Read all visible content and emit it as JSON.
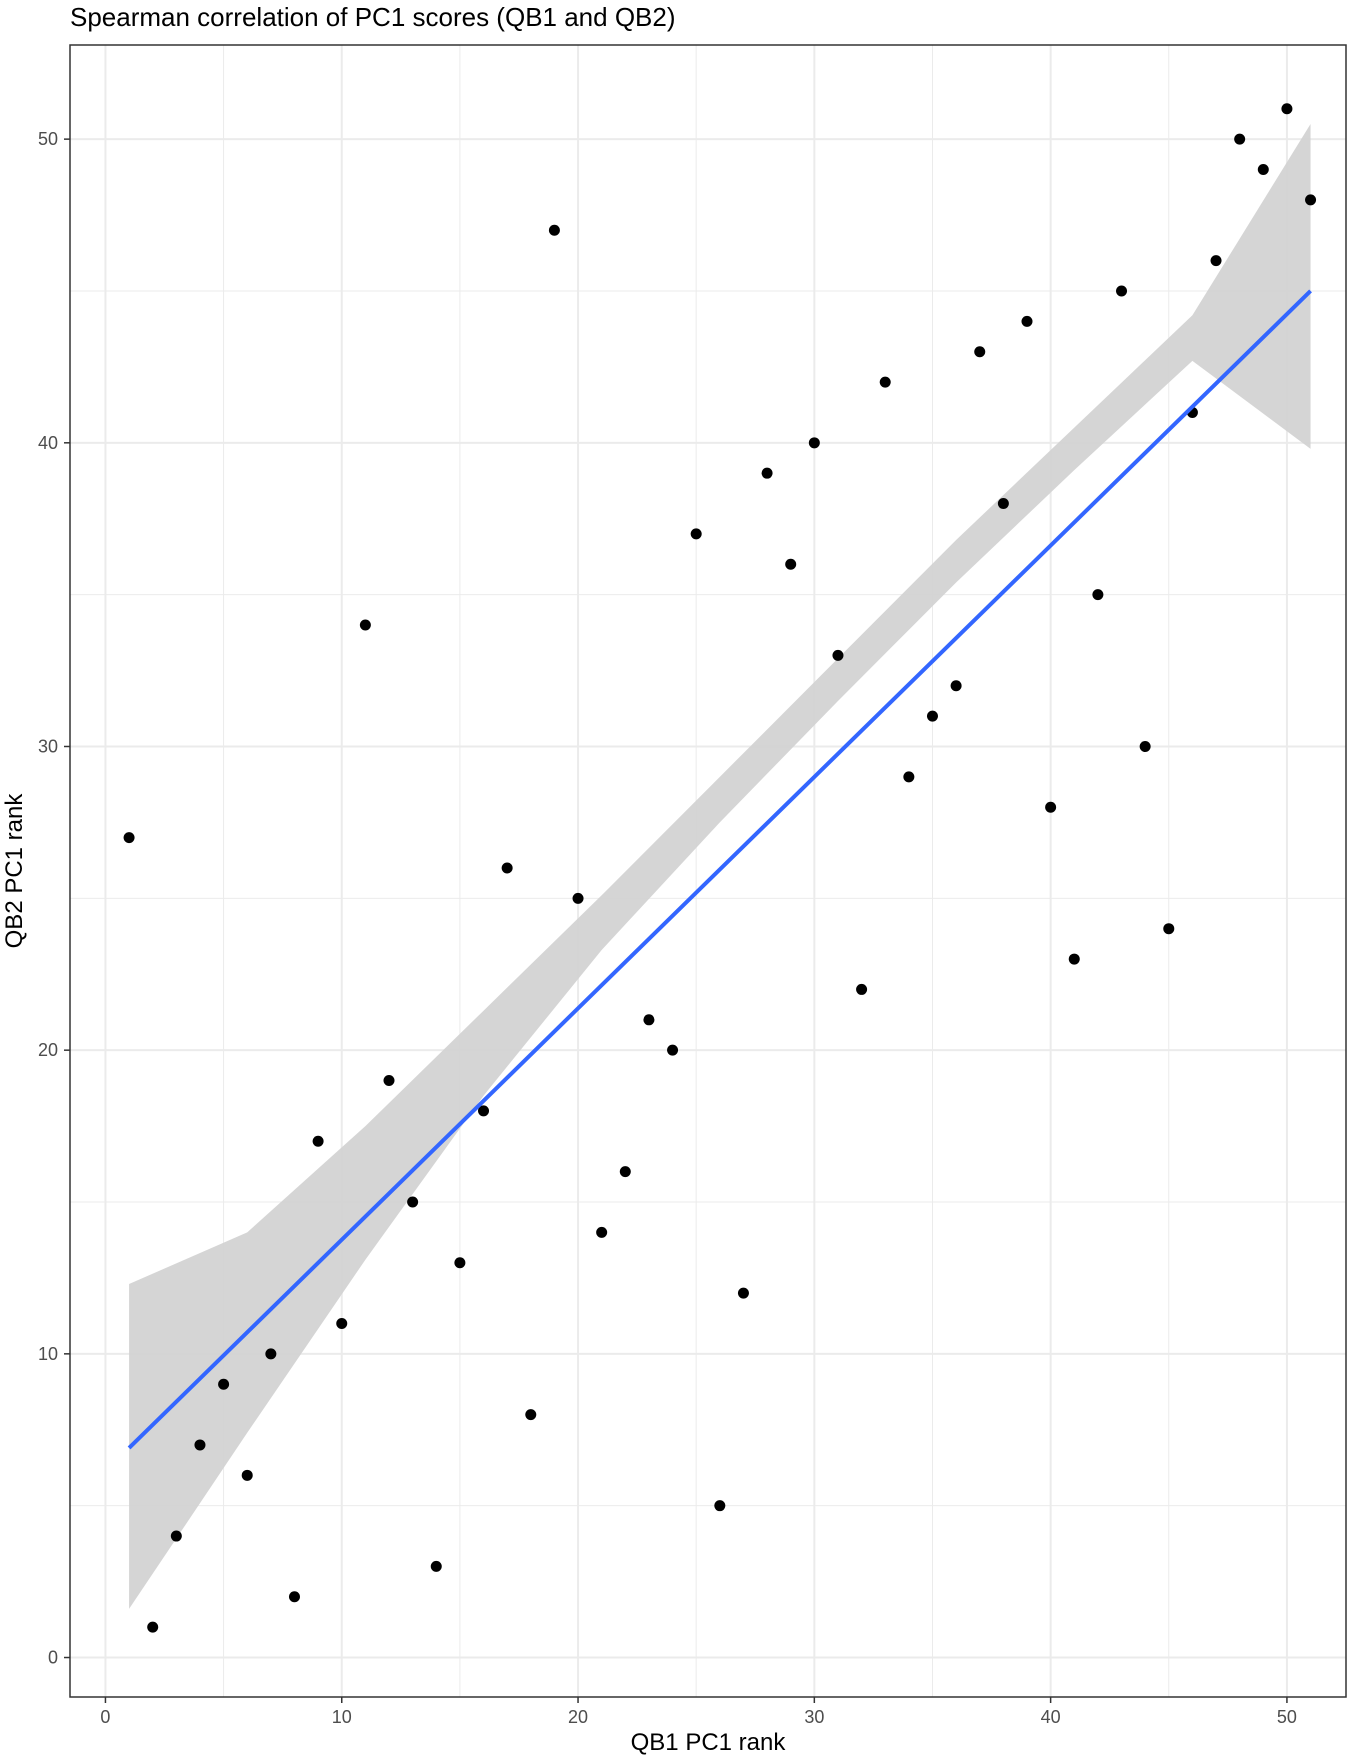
{
  "chart_data": {
    "type": "scatter",
    "title": "Spearman correlation of PC1 scores (QB1 and QB2)",
    "xlabel": "QB1 PC1 rank",
    "ylabel": "QB2 PC1 rank",
    "xlim": [
      -1.5,
      52.5
    ],
    "ylim": [
      -1.3,
      53.1
    ],
    "x_ticks": [
      0,
      10,
      20,
      30,
      40,
      50
    ],
    "y_ticks": [
      0,
      10,
      20,
      30,
      40,
      50
    ],
    "x_minor_ticks": [
      5,
      15,
      25,
      35,
      45
    ],
    "y_minor_ticks": [
      5,
      15,
      25,
      35,
      45
    ],
    "grid": true,
    "points": {
      "x": [
        1,
        2,
        3,
        4,
        5,
        6,
        7,
        8,
        9,
        10,
        11,
        12,
        13,
        14,
        15,
        16,
        17,
        18,
        19,
        20,
        21,
        22,
        23,
        24,
        25,
        26,
        27,
        28,
        29,
        30,
        31,
        32,
        33,
        34,
        35,
        36,
        37,
        38,
        39,
        40,
        41,
        42,
        43,
        44,
        45,
        46,
        47,
        48,
        49,
        50,
        51
      ],
      "y": [
        27,
        1,
        4,
        7,
        9,
        6,
        10,
        2,
        17,
        11,
        34,
        19,
        15,
        3,
        13,
        18,
        26,
        8,
        47,
        25,
        14,
        16,
        21,
        20,
        37,
        5,
        12,
        39,
        36,
        40,
        33,
        22,
        42,
        29,
        31,
        32,
        43,
        38,
        44,
        28,
        23,
        35,
        45,
        30,
        24,
        41,
        46,
        50,
        49,
        51,
        48
      ]
    },
    "fit_line": {
      "x": [
        1,
        51
      ],
      "y": [
        6.9,
        45.0
      ]
    },
    "confidence_band": {
      "x": [
        1,
        6,
        11,
        16,
        21,
        26,
        31,
        36,
        41,
        46,
        51
      ],
      "lower": [
        1.6,
        7.4,
        13.1,
        18.5,
        23.3,
        27.5,
        31.5,
        35.4,
        39.1,
        42.7,
        39.8
      ],
      "upper": [
        12.3,
        14.0,
        17.5,
        21.3,
        25.1,
        29.0,
        32.9,
        36.8,
        40.5,
        44.2,
        50.5
      ]
    },
    "colors": {
      "points": "#000000",
      "fit_line": "#3366ff",
      "band": "#d3d3d3",
      "grid": "#ebebeb",
      "panel_border": "#333333"
    }
  }
}
